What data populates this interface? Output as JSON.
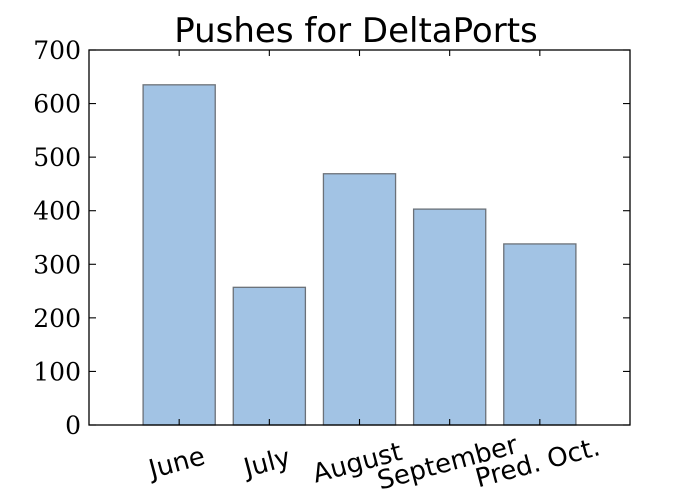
{
  "chart_data": {
    "type": "bar",
    "title": "Pushes for DeltaPorts",
    "categories": [
      "June",
      "July",
      "August",
      "September",
      "Pred. Oct."
    ],
    "values": [
      635,
      257,
      469,
      403,
      338
    ],
    "xlabel": "",
    "ylabel": "",
    "ylim": [
      0,
      700
    ],
    "yticks": [
      0,
      100,
      200,
      300,
      400,
      500,
      600,
      700
    ],
    "grid": false,
    "colors": {
      "bar_fill": "#a2c3e4",
      "bar_edge": "#6b7178"
    }
  }
}
